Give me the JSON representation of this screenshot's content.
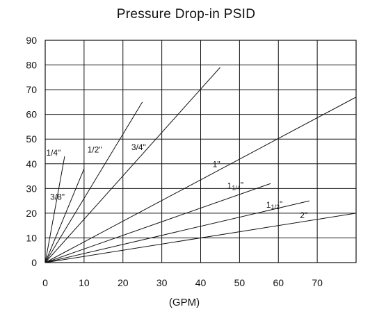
{
  "chart_data": {
    "type": "line",
    "title": "Pressure Drop-in PSID",
    "xlabel": "(GPM)",
    "ylabel": "",
    "xlim": [
      0,
      80
    ],
    "ylim": [
      0,
      90
    ],
    "xticks": [
      0,
      10,
      20,
      30,
      40,
      50,
      60,
      70
    ],
    "yticks": [
      0,
      10,
      20,
      30,
      40,
      50,
      60,
      70,
      80,
      90
    ],
    "grid": true,
    "legend": "labels on lines",
    "series": [
      {
        "name": "1/4\"",
        "label_main": "1/4\"",
        "label_sub": "",
        "label_tail": "",
        "x": [
          0,
          5
        ],
        "y": [
          0,
          43
        ]
      },
      {
        "name": "3/8\"",
        "label_main": "3/8\"",
        "label_sub": "",
        "label_tail": "",
        "x": [
          0,
          10
        ],
        "y": [
          0,
          38
        ]
      },
      {
        "name": "1/2\"",
        "label_main": "1/2\"",
        "label_sub": "",
        "label_tail": "",
        "x": [
          0,
          25
        ],
        "y": [
          0,
          65
        ]
      },
      {
        "name": "3/4\"",
        "label_main": "3/4\"",
        "label_sub": "",
        "label_tail": "",
        "x": [
          0,
          45
        ],
        "y": [
          0,
          79
        ]
      },
      {
        "name": "1\"",
        "label_main": "1\"",
        "label_sub": "",
        "label_tail": "",
        "x": [
          0,
          80
        ],
        "y": [
          0,
          67
        ]
      },
      {
        "name": "11/4\"",
        "label_main": "1",
        "label_sub": "1/4",
        "label_tail": "\"",
        "x": [
          0,
          58
        ],
        "y": [
          0,
          32
        ]
      },
      {
        "name": "11/2\"",
        "label_main": "1",
        "label_sub": "1/2",
        "label_tail": "\"",
        "x": [
          0,
          68
        ],
        "y": [
          0,
          25
        ]
      },
      {
        "name": "2\"",
        "label_main": "2\"",
        "label_sub": "",
        "label_tail": "",
        "x": [
          0,
          80
        ],
        "y": [
          0,
          20
        ]
      }
    ]
  }
}
